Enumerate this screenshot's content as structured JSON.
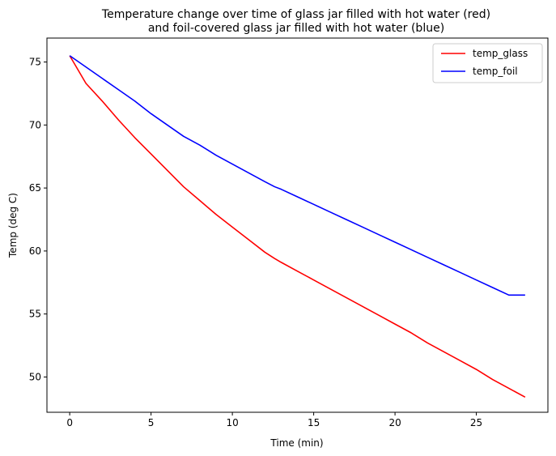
{
  "chart_data": {
    "type": "line",
    "title_line1": "Temperature change over time of glass jar filled with hot water (red)",
    "title_line2": "and foil-covered glass jar filled with hot water (blue)",
    "xlabel": "Time (min)",
    "ylabel": "Temp (deg C)",
    "xlim": [
      -1.4,
      29.4
    ],
    "ylim": [
      47.2,
      76.9
    ],
    "xticks": [
      0,
      5,
      10,
      15,
      20,
      25
    ],
    "yticks": [
      50,
      55,
      60,
      65,
      70,
      75
    ],
    "grid": false,
    "legend_position": "top-right",
    "x": [
      0,
      1,
      2,
      3,
      4,
      5,
      6,
      7,
      8,
      9,
      10,
      11,
      12,
      12.6,
      13,
      14,
      15,
      16,
      17,
      18,
      19,
      20,
      21,
      22,
      23,
      24,
      25,
      26,
      27,
      28
    ],
    "series": [
      {
        "name": "temp_glass",
        "color": "#ff0000",
        "values": [
          75.5,
          73.3,
          71.9,
          70.4,
          69.0,
          67.7,
          66.4,
          65.1,
          64.0,
          62.9,
          61.9,
          60.9,
          59.9,
          59.4,
          59.1,
          58.4,
          57.7,
          57.0,
          56.3,
          55.6,
          54.9,
          54.2,
          53.5,
          52.7,
          52.0,
          51.3,
          50.6,
          49.8,
          49.1,
          48.4
        ]
      },
      {
        "name": "temp_foil",
        "color": "#0000ff",
        "values": [
          75.5,
          74.6,
          73.7,
          72.8,
          71.9,
          70.9,
          70.0,
          69.1,
          68.4,
          67.6,
          66.9,
          66.2,
          65.5,
          65.1,
          64.9,
          64.3,
          63.7,
          63.1,
          62.5,
          61.9,
          61.3,
          60.7,
          60.1,
          59.5,
          58.9,
          58.3,
          57.7,
          57.1,
          56.5,
          56.5
        ]
      }
    ]
  }
}
